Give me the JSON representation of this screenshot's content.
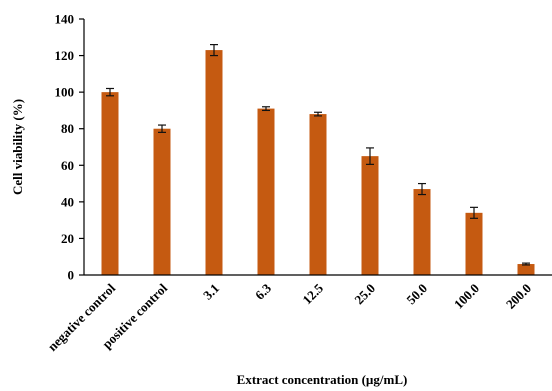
{
  "chart_data": {
    "type": "bar",
    "title": "",
    "xlabel": "Extract concentration (µg/mL)",
    "ylabel": "Cell viability (%)",
    "categories": [
      "negative control",
      "positive control",
      "3.1",
      "6.3",
      "12.5",
      "25.0",
      "50.0",
      "100.0",
      "200.0"
    ],
    "values": [
      100,
      80,
      123,
      91,
      88,
      65,
      47,
      34,
      6
    ],
    "errors": [
      2,
      2,
      3,
      1,
      1,
      4.5,
      3,
      3,
      0.5
    ],
    "ylim": [
      0,
      140
    ],
    "yticks": [
      0,
      20,
      40,
      60,
      80,
      100,
      120,
      140
    ],
    "grid": false,
    "legend": "none",
    "bar_color": "#C55A11",
    "error_color": "#111111"
  }
}
